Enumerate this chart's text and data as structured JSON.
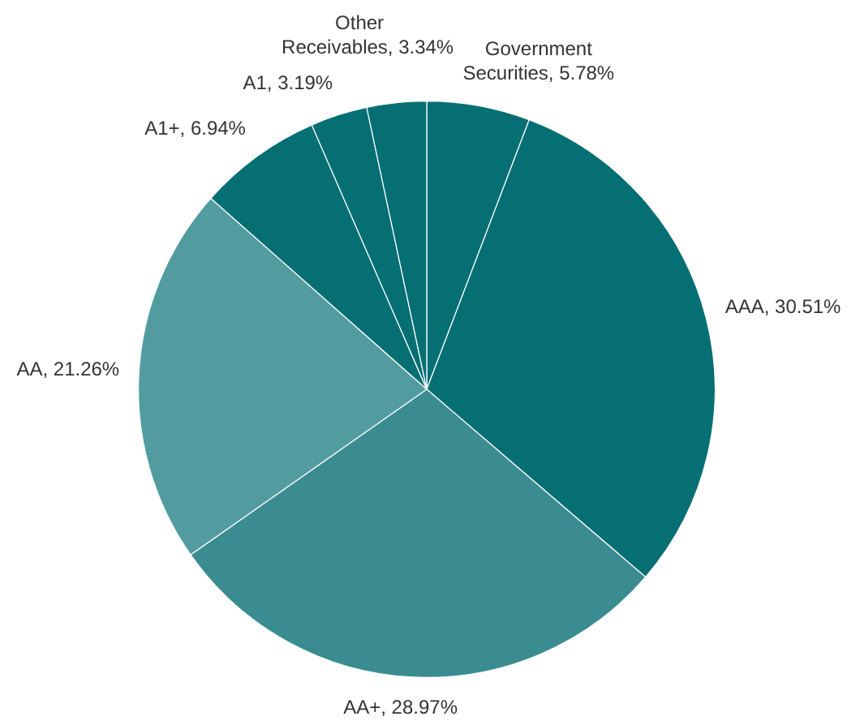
{
  "chart_data": {
    "type": "pie",
    "categories": [
      "Government Securities",
      "AAA",
      "AA+",
      "AA",
      "A1+",
      "A1",
      "Other Receivables"
    ],
    "values": [
      5.78,
      30.51,
      28.97,
      21.26,
      6.94,
      3.19,
      3.34
    ],
    "colors": [
      "#056f74",
      "#056f74",
      "#3a8c91",
      "#529ca0",
      "#056f74",
      "#056f74",
      "#056f74"
    ],
    "value_labels": [
      "5.78%",
      "30.51%",
      "28.97%",
      "21.26%",
      "6.94%",
      "3.19%",
      "3.34%"
    ],
    "legend": false
  }
}
